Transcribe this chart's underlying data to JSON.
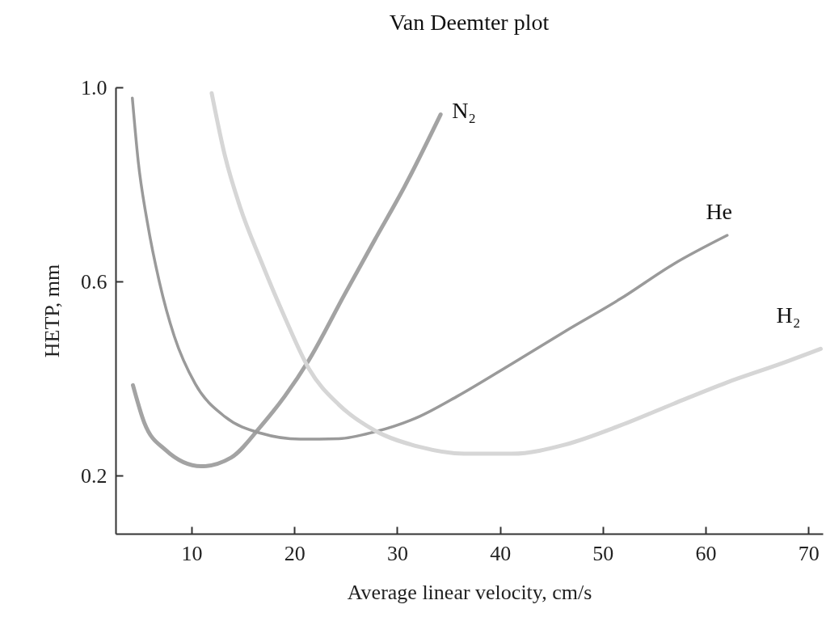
{
  "chart_data": {
    "type": "line",
    "title": "Van Deemter plot",
    "xlabel": "Average linear velocity, cm/s",
    "ylabel": "HETP, mm",
    "xlim": [
      2.6,
      71.4
    ],
    "ylim": [
      0.08,
      1.0
    ],
    "xticks": [
      10,
      20,
      30,
      40,
      50,
      60,
      70
    ],
    "yticks": [
      0.2,
      0.6,
      {
        "value": 1,
        "label": "1.0"
      }
    ],
    "grid": false,
    "legend": false,
    "series": [
      {
        "name": "N₂",
        "color": "#a3a3a3",
        "x": [
          4.29,
          5.39,
          7.44,
          10.93,
          13.84,
          16.75,
          19.08,
          21.41,
          24.9,
          27.8,
          30.73,
          34.22
        ],
        "values": [
          0.386,
          0.309,
          0.253,
          0.219,
          0.237,
          0.302,
          0.364,
          0.438,
          0.574,
          0.685,
          0.796,
          0.944
        ]
      },
      {
        "name": "He",
        "color": "#9a9a9a",
        "x": [
          4.23,
          4.81,
          5.69,
          6.86,
          8.31,
          10.35,
          13.25,
          16.75,
          20.53,
          24.32,
          27.8,
          32.19,
          35.9,
          41.2,
          46.4,
          51.7,
          56.9,
          62.1
        ],
        "values": [
          0.978,
          0.846,
          0.722,
          0.599,
          0.487,
          0.389,
          0.321,
          0.287,
          0.275,
          0.276,
          0.29,
          0.322,
          0.364,
          0.431,
          0.498,
          0.564,
          0.636,
          0.695
        ]
      },
      {
        "name": "H₂",
        "color": "#d6d6d6",
        "x": [
          11.95,
          13.25,
          14.72,
          16.75,
          19.08,
          21.41,
          24.32,
          27.8,
          32.19,
          36.5,
          41.2,
          46.4,
          51.7,
          56.9,
          62.1,
          67.4,
          71.2
        ],
        "values": [
          0.988,
          0.858,
          0.753,
          0.642,
          0.525,
          0.42,
          0.346,
          0.293,
          0.259,
          0.245,
          0.245,
          0.264,
          0.303,
          0.348,
          0.392,
          0.431,
          0.461
        ]
      }
    ]
  }
}
